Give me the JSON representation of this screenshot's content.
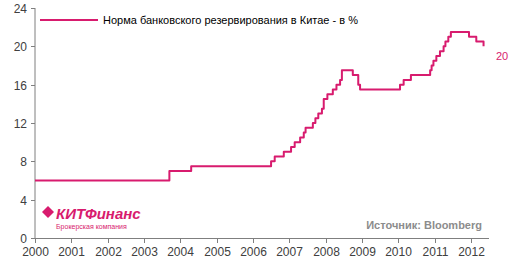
{
  "chart_data": {
    "type": "line",
    "x": [
      2000.0,
      2003.7,
      2004.3,
      2006.5,
      2006.6,
      2006.85,
      2007.05,
      2007.15,
      2007.3,
      2007.4,
      2007.45,
      2007.65,
      2007.72,
      2007.8,
      2007.9,
      2007.95,
      2008.05,
      2008.2,
      2008.3,
      2008.4,
      2008.45,
      2008.75,
      2008.9,
      2008.95,
      2010.05,
      2010.15,
      2010.35,
      2010.88,
      2010.92,
      2010.97,
      2011.05,
      2011.15,
      2011.25,
      2011.3,
      2011.38,
      2011.45,
      2011.95,
      2012.15,
      2012.35
    ],
    "series": [
      {
        "name": "Норма банковского резервирования в Китае - в %",
        "color": "#d81b6e",
        "line_style": "step",
        "values": [
          6,
          7,
          7.5,
          8,
          8.5,
          9,
          9.5,
          10,
          10.5,
          11,
          11.5,
          12,
          12.5,
          13,
          13.5,
          14.5,
          15,
          15.5,
          16,
          16.5,
          17.5,
          17,
          16,
          15.5,
          16,
          16.5,
          17,
          17.5,
          18,
          18.5,
          19,
          19.5,
          20,
          20.5,
          21,
          21.5,
          21,
          20.5,
          20
        ]
      }
    ],
    "xlim": [
      2000,
      2012.5
    ],
    "xticks": [
      2000,
      2001,
      2002,
      2003,
      2004,
      2005,
      2006,
      2007,
      2008,
      2009,
      2010,
      2011,
      2012
    ],
    "ylim": [
      0,
      24
    ],
    "yticks": [
      0,
      4,
      8,
      12,
      16,
      20,
      24
    ],
    "grid": false,
    "legend": "top-left",
    "annotations": [
      {
        "text": "20",
        "value": 20
      }
    ],
    "source": "Источник: Bloomberg",
    "logo": "КИТФинанс",
    "logo_subtitle": "Брокерская компания"
  }
}
